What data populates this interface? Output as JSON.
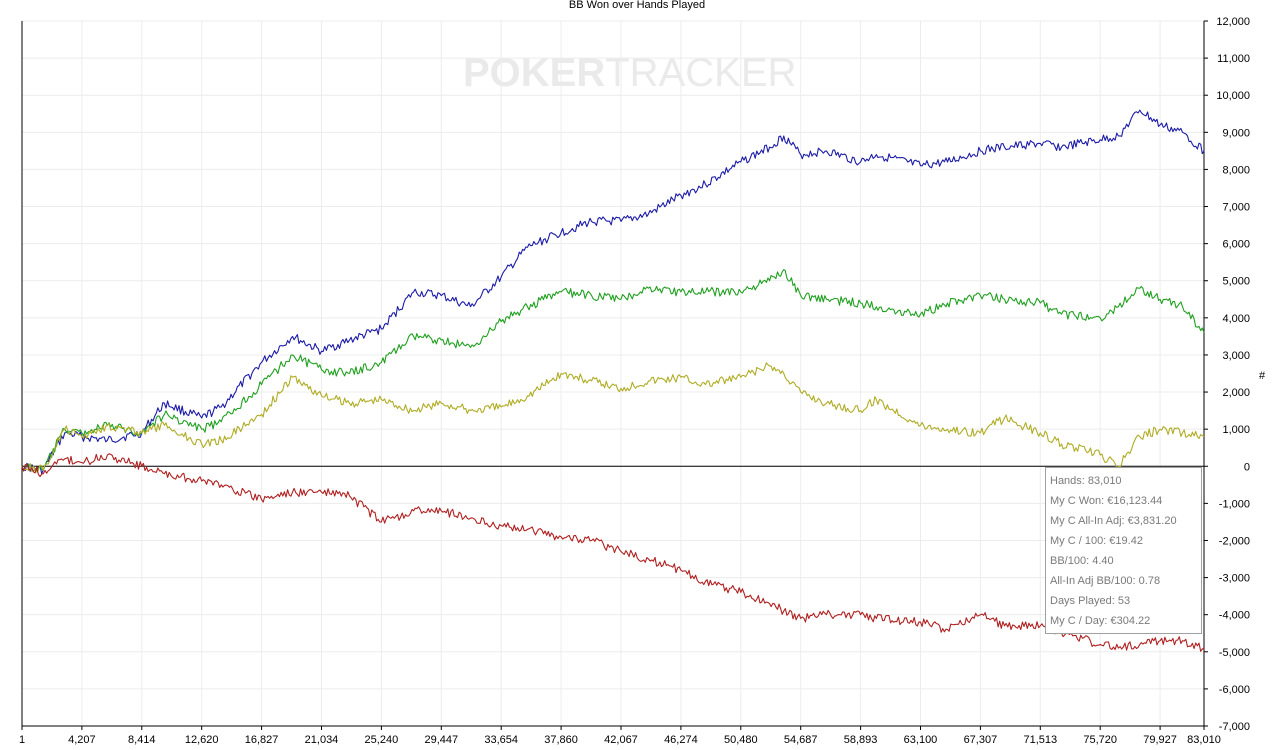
{
  "chart_data": {
    "type": "line",
    "title": "BB Won over Hands Played",
    "ylabel": "#",
    "xlabel": "",
    "x_ticks": [
      "1",
      "4,207",
      "8,414",
      "12,620",
      "16,827",
      "21,034",
      "25,240",
      "29,447",
      "33,654",
      "37,860",
      "42,067",
      "46,274",
      "50,480",
      "54,687",
      "58,893",
      "63,100",
      "67,307",
      "71,513",
      "75,720",
      "79,927",
      "83,010"
    ],
    "y_ticks": [
      "12,000",
      "11,000",
      "10,000",
      "9,000",
      "8,000",
      "7,000",
      "6,000",
      "5,000",
      "4,000",
      "3,000",
      "2,000",
      "1,000",
      "0",
      "-1,000",
      "-2,000",
      "-3,000",
      "-4,000",
      "-5,000",
      "-6,000",
      "-7,000"
    ],
    "xlim": [
      1,
      83010
    ],
    "ylim": [
      -7000,
      12000
    ],
    "grid": true,
    "watermark": {
      "part1": "PO",
      "part2": "KER",
      "part3": "TRACKER"
    },
    "series": [
      {
        "color": "#1c1ca8",
        "x": [
          1,
          1500,
          3000,
          4207,
          6000,
          8414,
          10000,
          12620,
          14000,
          16827,
          19000,
          21034,
          23000,
          25240,
          27500,
          29447,
          31500,
          33654,
          35500,
          37860,
          40000,
          42067,
          44000,
          46274,
          48000,
          50480,
          52500,
          53500,
          54687,
          56500,
          58893,
          60000,
          63100,
          65000,
          67307,
          69000,
          71513,
          73000,
          75720,
          77000,
          78500,
          79927,
          81500,
          83010
        ],
        "y": [
          0,
          -100,
          900,
          800,
          700,
          900,
          1700,
          1300,
          1600,
          2800,
          3500,
          3100,
          3400,
          3700,
          4700,
          4600,
          4300,
          5100,
          5900,
          6300,
          6600,
          6600,
          6800,
          7300,
          7600,
          8200,
          8600,
          8900,
          8400,
          8500,
          8200,
          8400,
          8100,
          8200,
          8500,
          8600,
          8700,
          8600,
          8800,
          8900,
          9600,
          9200,
          9000,
          8500
        ]
      },
      {
        "color": "#20a020",
        "x": [
          1,
          1500,
          3000,
          4207,
          6000,
          8414,
          10000,
          12620,
          14000,
          16827,
          19000,
          21034,
          23000,
          25240,
          27500,
          29447,
          31500,
          33654,
          35500,
          37860,
          40000,
          42067,
          44000,
          46274,
          48000,
          50480,
          52500,
          53500,
          54687,
          56500,
          58893,
          60000,
          63100,
          65000,
          67307,
          69000,
          71513,
          73000,
          75720,
          77000,
          78500,
          79927,
          81500,
          83010
        ],
        "y": [
          0,
          -100,
          1000,
          900,
          1100,
          900,
          1400,
          1000,
          1200,
          2200,
          3000,
          2600,
          2500,
          2800,
          3500,
          3400,
          3200,
          3900,
          4300,
          4700,
          4600,
          4500,
          4800,
          4700,
          4700,
          4700,
          5000,
          5300,
          4600,
          4500,
          4400,
          4300,
          4100,
          4400,
          4600,
          4500,
          4400,
          4100,
          4000,
          4300,
          4800,
          4500,
          4300,
          3600
        ]
      },
      {
        "color": "#b0ac24",
        "x": [
          1,
          1500,
          3000,
          4207,
          6000,
          8414,
          10000,
          12620,
          14000,
          16827,
          19000,
          21034,
          23000,
          25240,
          27500,
          29447,
          31500,
          33654,
          35500,
          37860,
          40000,
          42067,
          44000,
          46274,
          48000,
          50480,
          52500,
          53500,
          54687,
          56500,
          58893,
          60000,
          63100,
          65000,
          67307,
          69000,
          71513,
          73000,
          75720,
          77000,
          78500,
          79927,
          81500,
          83010
        ],
        "y": [
          0,
          -100,
          1000,
          800,
          1100,
          900,
          1100,
          600,
          700,
          1400,
          2400,
          1900,
          1700,
          1800,
          1500,
          1700,
          1500,
          1600,
          1900,
          2500,
          2300,
          2100,
          2300,
          2400,
          2200,
          2400,
          2700,
          2500,
          2000,
          1700,
          1500,
          1800,
          1100,
          1000,
          900,
          1300,
          900,
          600,
          300,
          0,
          800,
          1000,
          900,
          800
        ]
      },
      {
        "color": "#b02020",
        "x": [
          1,
          1500,
          3000,
          4207,
          6000,
          8414,
          10000,
          12620,
          14000,
          16827,
          19000,
          21034,
          23000,
          25240,
          27500,
          29447,
          31500,
          33654,
          35500,
          37860,
          40000,
          42067,
          44000,
          46274,
          48000,
          50480,
          52500,
          53500,
          54687,
          56500,
          58893,
          60000,
          63100,
          65000,
          67307,
          69000,
          71513,
          73000,
          75720,
          77000,
          78500,
          79927,
          81500,
          83010
        ],
        "y": [
          0,
          -200,
          200,
          100,
          300,
          0,
          -200,
          -400,
          -500,
          -900,
          -700,
          -700,
          -800,
          -1500,
          -1200,
          -1200,
          -1400,
          -1600,
          -1700,
          -1900,
          -2000,
          -2300,
          -2500,
          -2800,
          -3100,
          -3400,
          -3700,
          -3900,
          -4100,
          -4000,
          -4000,
          -4100,
          -4200,
          -4400,
          -4000,
          -4300,
          -4300,
          -4500,
          -4800,
          -4900,
          -4800,
          -4700,
          -4700,
          -4900
        ]
      }
    ]
  },
  "stats": [
    {
      "label": "Hands: 83,010"
    },
    {
      "label": "My C Won: €16,123.44"
    },
    {
      "label": "My C All-In Adj: €3,831.20"
    },
    {
      "label": "My C / 100: €19.42"
    },
    {
      "label": "BB/100: 4.40"
    },
    {
      "label": "All-In Adj BB/100: 0.78"
    },
    {
      "label": "Days Played: 53"
    },
    {
      "label": "My C / Day: €304.22"
    }
  ]
}
